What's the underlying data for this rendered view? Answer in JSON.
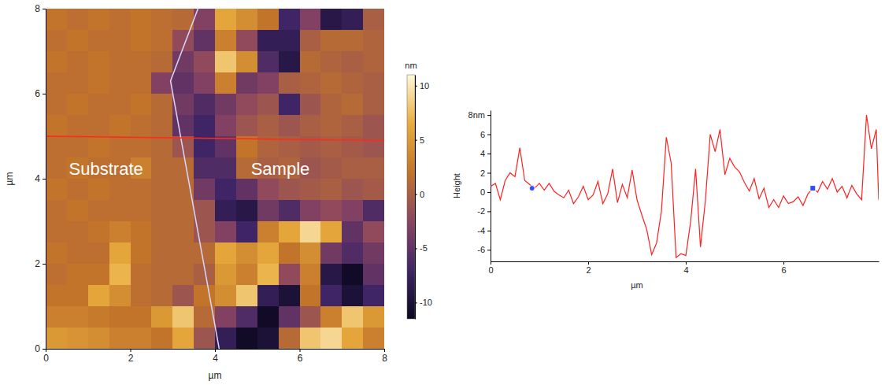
{
  "chart_data": [
    {
      "type": "heatmap",
      "xlabel": "µm",
      "ylabel": "µm",
      "xlim": [
        0,
        8
      ],
      "ylim": [
        0,
        8
      ],
      "xticks": [
        0,
        2,
        4,
        6,
        8
      ],
      "yticks": [
        0,
        2,
        4,
        6,
        8
      ],
      "cells": [
        [
          2,
          1.5,
          2,
          1.5,
          2,
          1.5,
          1,
          -3,
          6,
          4,
          2,
          -7,
          -3,
          -9,
          -8,
          0
        ],
        [
          1.5,
          2,
          1.5,
          1.5,
          2,
          1.5,
          -2,
          -5,
          3,
          -2,
          -8,
          -8,
          0,
          1,
          1,
          0.5
        ],
        [
          2,
          1.5,
          2,
          1.5,
          1.5,
          1,
          -4,
          -2,
          8,
          4,
          -6,
          -9,
          1,
          0.5,
          0,
          0.5
        ],
        [
          1.5,
          1.5,
          2,
          1.5,
          1.5,
          -3,
          -5,
          -3,
          3,
          -4,
          -3,
          0,
          0.5,
          1,
          0.5,
          0
        ],
        [
          1.5,
          2,
          1.5,
          1.5,
          2,
          1,
          -4,
          -6,
          -4,
          -2,
          -1,
          -7,
          -1,
          0.5,
          1,
          0
        ],
        [
          2,
          1.5,
          1.5,
          2,
          1.5,
          1,
          -5,
          -7,
          -3,
          -1,
          0,
          -1,
          0,
          0.5,
          0,
          -1
        ],
        [
          1.5,
          1.5,
          2,
          1.5,
          1.5,
          1,
          -1,
          -7,
          -5,
          2,
          0.5,
          0,
          -0.5,
          0,
          -0.5,
          -1
        ],
        [
          1.5,
          2,
          1.5,
          1.5,
          3,
          1,
          1,
          -6,
          -6,
          1,
          0,
          0.5,
          -1,
          -0.5,
          0,
          0
        ],
        [
          2,
          1.5,
          2,
          1.5,
          1.5,
          1,
          1,
          -4,
          -7,
          -5,
          -2,
          -1,
          -0.5,
          0,
          -1,
          -0.5
        ],
        [
          1.5,
          2,
          1.5,
          1.5,
          1.5,
          1,
          1,
          -1,
          -8,
          -9,
          -4,
          -6,
          -3,
          -2,
          -3,
          -6
        ],
        [
          1.5,
          1.5,
          2,
          3,
          2,
          1,
          1,
          -1,
          -3,
          -7,
          3,
          6,
          9,
          6,
          -5,
          -2
        ],
        [
          2,
          1.5,
          1.5,
          6,
          2,
          1,
          1,
          1,
          6,
          4,
          6,
          2,
          4,
          -4,
          -6,
          -4
        ],
        [
          1.5,
          2,
          2,
          7,
          1.5,
          1,
          1,
          0,
          5,
          3,
          7,
          -2,
          3,
          -9,
          -11,
          -5
        ],
        [
          2,
          2,
          6,
          4,
          1.5,
          1,
          -1,
          2,
          4,
          8,
          -8,
          -10,
          2,
          -7,
          -10,
          -7
        ],
        [
          3,
          3,
          2.5,
          2,
          2,
          5,
          8,
          1,
          -3,
          -6,
          -11,
          -5,
          -1,
          3,
          8,
          5
        ],
        [
          5,
          4.5,
          4,
          3,
          3,
          2,
          6,
          -1,
          -8,
          -11,
          -10,
          1,
          8,
          9,
          6,
          3
        ]
      ],
      "colorbar": {
        "label": "nm",
        "range": [
          -11.5,
          11
        ],
        "ticks": [
          10,
          5,
          0,
          -5,
          -10
        ]
      },
      "profile_line": {
        "x": [
          0,
          8
        ],
        "y": [
          5.0,
          4.9
        ],
        "color": "#ff2a1a"
      },
      "boundary": {
        "x": [
          3.6,
          2.95,
          4.1
        ],
        "y": [
          8,
          6.3,
          0
        ],
        "color": "#d8d8ff"
      },
      "annotations": [
        {
          "text": "Substrate",
          "x": 0.55,
          "y": 4.2
        },
        {
          "text": "Sample",
          "x": 4.85,
          "y": 4.2
        }
      ]
    },
    {
      "type": "line",
      "xlabel": "µm",
      "ylabel": "Height",
      "xlim": [
        0,
        7.95
      ],
      "ylim": [
        -7.2,
        8.5
      ],
      "xticks": [
        0,
        2,
        4,
        6
      ],
      "yticks": [
        {
          "value": 8,
          "label": "8nm"
        },
        6,
        4,
        2,
        0,
        -2,
        -4,
        -6
      ],
      "color": "#ff2020",
      "x": [
        0,
        0.1,
        0.2,
        0.3,
        0.4,
        0.5,
        0.6,
        0.7,
        0.8,
        0.9,
        1.0,
        1.1,
        1.2,
        1.3,
        1.4,
        1.5,
        1.6,
        1.7,
        1.8,
        1.9,
        2.0,
        2.1,
        2.2,
        2.3,
        2.4,
        2.5,
        2.6,
        2.7,
        2.8,
        2.9,
        3.0,
        3.1,
        3.2,
        3.3,
        3.4,
        3.5,
        3.6,
        3.7,
        3.8,
        3.9,
        4.0,
        4.1,
        4.2,
        4.3,
        4.4,
        4.5,
        4.6,
        4.7,
        4.8,
        4.9,
        5.0,
        5.1,
        5.2,
        5.3,
        5.4,
        5.5,
        5.6,
        5.7,
        5.8,
        5.9,
        6.0,
        6.1,
        6.2,
        6.3,
        6.4,
        6.5,
        6.6,
        6.7,
        6.8,
        6.9,
        7.0,
        7.1,
        7.2,
        7.3,
        7.4,
        7.5,
        7.6,
        7.7,
        7.8,
        7.9,
        7.95
      ],
      "values": [
        0.6,
        0.9,
        -0.8,
        1.2,
        2.0,
        1.6,
        4.6,
        1.2,
        0.8,
        0.4,
        0.9,
        0.2,
        0.9,
        0.1,
        -0.3,
        -0.6,
        0.2,
        -1.2,
        -0.5,
        0.6,
        -0.8,
        -0.3,
        1.1,
        -1.2,
        -0.2,
        2.4,
        -1.1,
        0.8,
        -0.6,
        2.3,
        -0.8,
        -2.4,
        -3.9,
        -6.5,
        -5.3,
        -2.0,
        5.7,
        3.0,
        -6.8,
        -6.4,
        -6.6,
        -3.0,
        2.4,
        -5.7,
        -0.9,
        6.0,
        4.2,
        6.5,
        1.8,
        3.5,
        2.6,
        2.1,
        1.0,
        0.1,
        1.4,
        -0.7,
        0.4,
        -1.6,
        -0.8,
        -1.6,
        -0.4,
        -1.2,
        -1.0,
        -0.5,
        -1.4,
        -0.2,
        0.4,
        0.0,
        1.1,
        0.3,
        1.4,
        0.0,
        0.6,
        -0.6,
        0.7,
        -0.2,
        -0.8,
        8.0,
        4.5,
        6.5,
        -0.8
      ],
      "cursors": {
        "x": [
          0.85,
          6.6
        ],
        "y": [
          0.4,
          0.4
        ],
        "color": "#2f4dff"
      }
    }
  ]
}
